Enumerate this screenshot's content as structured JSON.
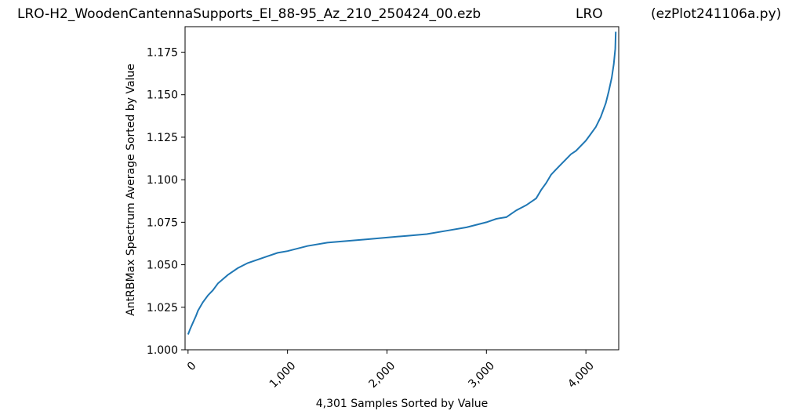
{
  "header": {
    "filename": "LRO-H2_WoodenCantennaSupports_El_88-95_Az_210_250424_00.ezb",
    "site": "LRO",
    "program": "(ezPlot241106a.py)"
  },
  "chart_data": {
    "type": "line",
    "title": "",
    "xlabel": "4,301 Samples Sorted by Value",
    "ylabel": "AntRBMax Spectrum Average Sorted by Value",
    "xlim": [
      -30,
      4330
    ],
    "ylim": [
      1.0,
      1.19
    ],
    "x_ticks": [
      0,
      1000,
      2000,
      3000,
      4000
    ],
    "x_tick_labels": [
      "0",
      "1,000",
      "2,000",
      "3,000",
      "4,000"
    ],
    "y_ticks": [
      1.0,
      1.025,
      1.05,
      1.075,
      1.1,
      1.125,
      1.15,
      1.175
    ],
    "y_tick_labels": [
      "1.000",
      "1.025",
      "1.050",
      "1.075",
      "1.100",
      "1.125",
      "1.150",
      "1.175"
    ],
    "grid": false,
    "line_color": "#1f77b4",
    "series": [
      {
        "x": [
          0,
          20,
          50,
          80,
          100,
          150,
          200,
          250,
          300,
          400,
          500,
          600,
          700,
          800,
          900,
          1000,
          1200,
          1400,
          1600,
          1800,
          2000,
          2200,
          2400,
          2600,
          2800,
          3000,
          3100,
          3200,
          3300,
          3400,
          3500,
          3550,
          3600,
          3650,
          3700,
          3750,
          3800,
          3850,
          3900,
          4000,
          4050,
          4100,
          4150,
          4200,
          4230,
          4260,
          4280,
          4295,
          4300
        ],
        "y": [
          1.009,
          1.012,
          1.016,
          1.02,
          1.023,
          1.028,
          1.032,
          1.035,
          1.039,
          1.044,
          1.048,
          1.051,
          1.053,
          1.055,
          1.057,
          1.058,
          1.061,
          1.063,
          1.064,
          1.065,
          1.066,
          1.067,
          1.068,
          1.07,
          1.072,
          1.075,
          1.077,
          1.078,
          1.082,
          1.085,
          1.089,
          1.094,
          1.098,
          1.103,
          1.106,
          1.109,
          1.112,
          1.115,
          1.117,
          1.123,
          1.127,
          1.131,
          1.137,
          1.145,
          1.152,
          1.16,
          1.168,
          1.177,
          1.187
        ]
      }
    ]
  }
}
